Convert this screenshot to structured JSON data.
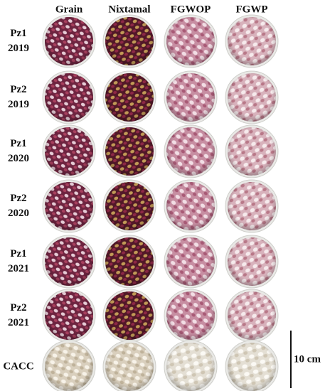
{
  "columns": [
    "Grain",
    "Nixtamal",
    "FGWOP",
    "FGWP"
  ],
  "rows": [
    {
      "label": [
        "Pz1",
        "2019"
      ]
    },
    {
      "label": [
        "Pz2",
        "2019"
      ]
    },
    {
      "label": [
        "Pz1",
        "2020"
      ]
    },
    {
      "label": [
        "Pz2",
        "2020"
      ]
    },
    {
      "label": [
        "Pz1",
        "2021"
      ]
    },
    {
      "label": [
        "Pz2",
        "2021"
      ]
    },
    {
      "label": [
        "CACC"
      ]
    }
  ],
  "scale_bar": "10 cm"
}
